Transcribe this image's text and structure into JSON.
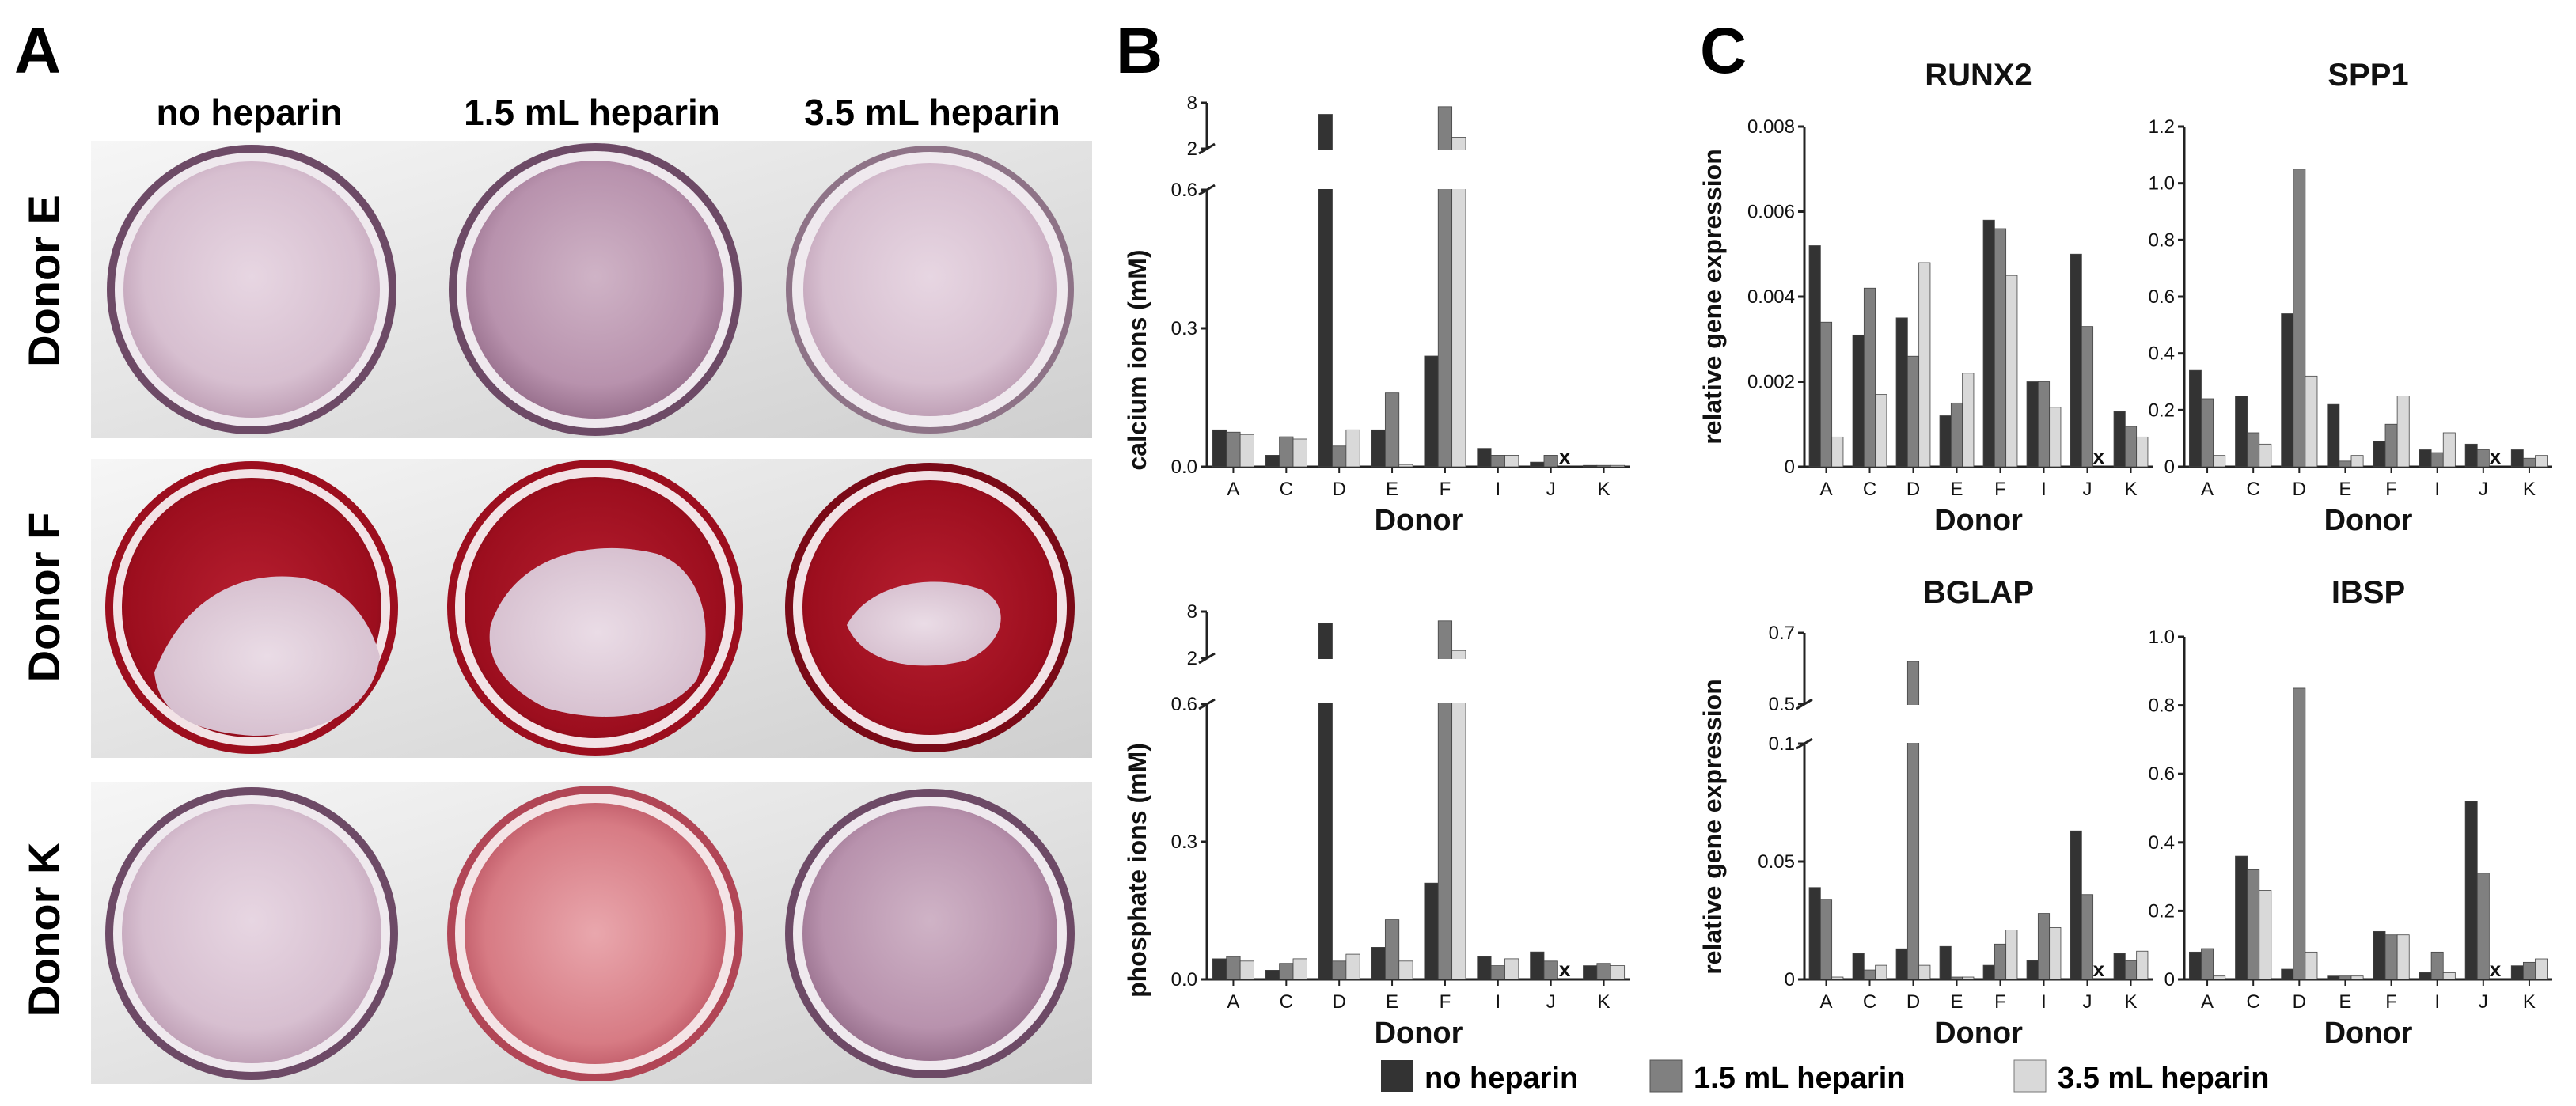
{
  "figure": {
    "panel_labels": [
      "A",
      "B",
      "C"
    ]
  },
  "photo_panel": {
    "column_headers": [
      "no heparin",
      "1.5 mL heparin",
      "3.5 mL heparin"
    ],
    "row_labels": [
      "Donor E",
      "Donor F",
      "Donor K"
    ]
  },
  "legend": {
    "entries": [
      {
        "label": "no heparin",
        "color": "#333333"
      },
      {
        "label": "1.5 mL heparin",
        "color": "#808080"
      },
      {
        "label": "3.5 mL heparin",
        "color": "#d9d9d9"
      }
    ]
  },
  "colors": {
    "no_heparin": "#333333",
    "heparin_1_5": "#808080",
    "heparin_3_5": "#d9d9d9",
    "stain_dark": "#9c0e1e",
    "stain_light": "#d7b6c8"
  },
  "chart_data": [
    {
      "id": "calcium",
      "type": "bar",
      "title": "",
      "xlabel": "Donor",
      "ylabel": "calcium ions (mM)",
      "categories": [
        "A",
        "C",
        "D",
        "E",
        "F",
        "I",
        "J",
        "K"
      ],
      "series": [
        {
          "name": "no heparin",
          "values": [
            0.08,
            0.025,
            6.5,
            0.08,
            0.24,
            0.04,
            0.01,
            0.003
          ]
        },
        {
          "name": "1.5 mL heparin",
          "values": [
            0.075,
            0.065,
            0.045,
            0.16,
            7.5,
            0.025,
            0.025,
            0.003
          ]
        },
        {
          "name": "3.5 mL heparin",
          "values": [
            0.07,
            0.06,
            0.08,
            0.005,
            3.5,
            0.025,
            null,
            0.003
          ]
        }
      ],
      "missing_markers": [
        {
          "category": "J",
          "series": "3.5 mL heparin",
          "symbol": "x"
        }
      ],
      "axis_break": {
        "lower_range": [
          0,
          0.6
        ],
        "upper_range": [
          2,
          8
        ]
      },
      "lower_ticks": [
        "0.0",
        "0.3",
        "0.6"
      ],
      "upper_ticks": [
        "2",
        "8"
      ]
    },
    {
      "id": "phosphate",
      "type": "bar",
      "title": "",
      "xlabel": "Donor",
      "ylabel": "phosphate ions (mM)",
      "categories": [
        "A",
        "C",
        "D",
        "E",
        "F",
        "I",
        "J",
        "K"
      ],
      "series": [
        {
          "name": "no heparin",
          "values": [
            0.045,
            0.02,
            6.5,
            0.07,
            0.21,
            0.05,
            0.06,
            0.03
          ]
        },
        {
          "name": "1.5 mL heparin",
          "values": [
            0.05,
            0.035,
            0.04,
            0.13,
            6.8,
            0.03,
            0.04,
            0.035
          ]
        },
        {
          "name": "3.5 mL heparin",
          "values": [
            0.04,
            0.045,
            0.055,
            0.04,
            3.0,
            0.045,
            null,
            0.03
          ]
        }
      ],
      "missing_markers": [
        {
          "category": "J",
          "series": "3.5 mL heparin",
          "symbol": "x"
        }
      ],
      "axis_break": {
        "lower_range": [
          0,
          0.6
        ],
        "upper_range": [
          2,
          8
        ]
      },
      "lower_ticks": [
        "0.0",
        "0.3",
        "0.6"
      ],
      "upper_ticks": [
        "2",
        "8"
      ]
    },
    {
      "id": "runx2",
      "type": "bar",
      "title": "RUNX2",
      "xlabel": "Donor",
      "ylabel": "relative gene expression",
      "categories": [
        "A",
        "C",
        "D",
        "E",
        "F",
        "I",
        "J",
        "K"
      ],
      "series": [
        {
          "name": "no heparin",
          "values": [
            0.0052,
            0.0031,
            0.0035,
            0.0012,
            0.0058,
            0.002,
            0.005,
            0.0013
          ]
        },
        {
          "name": "1.5 mL heparin",
          "values": [
            0.0034,
            0.0042,
            0.0026,
            0.0015,
            0.0056,
            0.002,
            0.0033,
            0.00095
          ]
        },
        {
          "name": "3.5 mL heparin",
          "values": [
            0.0007,
            0.0017,
            0.0048,
            0.0022,
            0.0045,
            0.0014,
            null,
            0.0007
          ]
        }
      ],
      "missing_markers": [
        {
          "category": "J",
          "series": "3.5 mL heparin",
          "symbol": "x"
        }
      ],
      "ylim": [
        0,
        0.008
      ],
      "ticks": [
        "0",
        "0.002",
        "0.004",
        "0.006",
        "0.008"
      ]
    },
    {
      "id": "spp1",
      "type": "bar",
      "title": "SPP1",
      "xlabel": "Donor",
      "ylabel": "",
      "categories": [
        "A",
        "C",
        "D",
        "E",
        "F",
        "I",
        "J",
        "K"
      ],
      "series": [
        {
          "name": "no heparin",
          "values": [
            0.34,
            0.25,
            0.54,
            0.22,
            0.09,
            0.06,
            0.08,
            0.06
          ]
        },
        {
          "name": "1.5 mL heparin",
          "values": [
            0.24,
            0.12,
            1.05,
            0.02,
            0.15,
            0.05,
            0.06,
            0.03
          ]
        },
        {
          "name": "3.5 mL heparin",
          "values": [
            0.04,
            0.08,
            0.32,
            0.04,
            0.25,
            0.12,
            null,
            0.04
          ]
        }
      ],
      "missing_markers": [
        {
          "category": "J",
          "series": "3.5 mL heparin",
          "symbol": "x"
        }
      ],
      "ylim": [
        0,
        1.2
      ],
      "ticks": [
        "0",
        "0.2",
        "0.4",
        "0.6",
        "0.8",
        "1.0",
        "1.2"
      ]
    },
    {
      "id": "bglap",
      "type": "bar",
      "title": "BGLAP",
      "xlabel": "Donor",
      "ylabel": "relative gene expression",
      "categories": [
        "A",
        "C",
        "D",
        "E",
        "F",
        "I",
        "J",
        "K"
      ],
      "series": [
        {
          "name": "no heparin",
          "values": [
            0.039,
            0.011,
            0.013,
            0.014,
            0.006,
            0.008,
            0.063,
            0.011
          ]
        },
        {
          "name": "1.5 mL heparin",
          "values": [
            0.034,
            0.004,
            0.62,
            0.001,
            0.015,
            0.028,
            0.036,
            0.008
          ]
        },
        {
          "name": "3.5 mL heparin",
          "values": [
            0.001,
            0.006,
            0.006,
            0.001,
            0.021,
            0.022,
            null,
            0.012
          ]
        }
      ],
      "missing_markers": [
        {
          "category": "J",
          "series": "3.5 mL heparin",
          "symbol": "x"
        }
      ],
      "axis_break": {
        "lower_range": [
          0,
          0.1
        ],
        "upper_range": [
          0.5,
          0.7
        ]
      },
      "lower_ticks": [
        "0",
        "0.05",
        "0.1"
      ],
      "upper_ticks": [
        "0.5",
        "0.7"
      ]
    },
    {
      "id": "ibsp",
      "type": "bar",
      "title": "IBSP",
      "xlabel": "Donor",
      "ylabel": "",
      "categories": [
        "A",
        "C",
        "D",
        "E",
        "F",
        "I",
        "J",
        "K"
      ],
      "series": [
        {
          "name": "no heparin",
          "values": [
            0.08,
            0.36,
            0.03,
            0.01,
            0.14,
            0.02,
            0.52,
            0.04
          ]
        },
        {
          "name": "1.5 mL heparin",
          "values": [
            0.09,
            0.32,
            0.85,
            0.01,
            0.13,
            0.08,
            0.31,
            0.05
          ]
        },
        {
          "name": "3.5 mL heparin",
          "values": [
            0.01,
            0.26,
            0.08,
            0.01,
            0.13,
            0.02,
            null,
            0.06
          ]
        }
      ],
      "missing_markers": [
        {
          "category": "J",
          "series": "3.5 mL heparin",
          "symbol": "x"
        }
      ],
      "ylim": [
        0,
        1.0
      ],
      "ticks": [
        "0",
        "0.2",
        "0.4",
        "0.6",
        "0.8",
        "1.0"
      ]
    }
  ]
}
